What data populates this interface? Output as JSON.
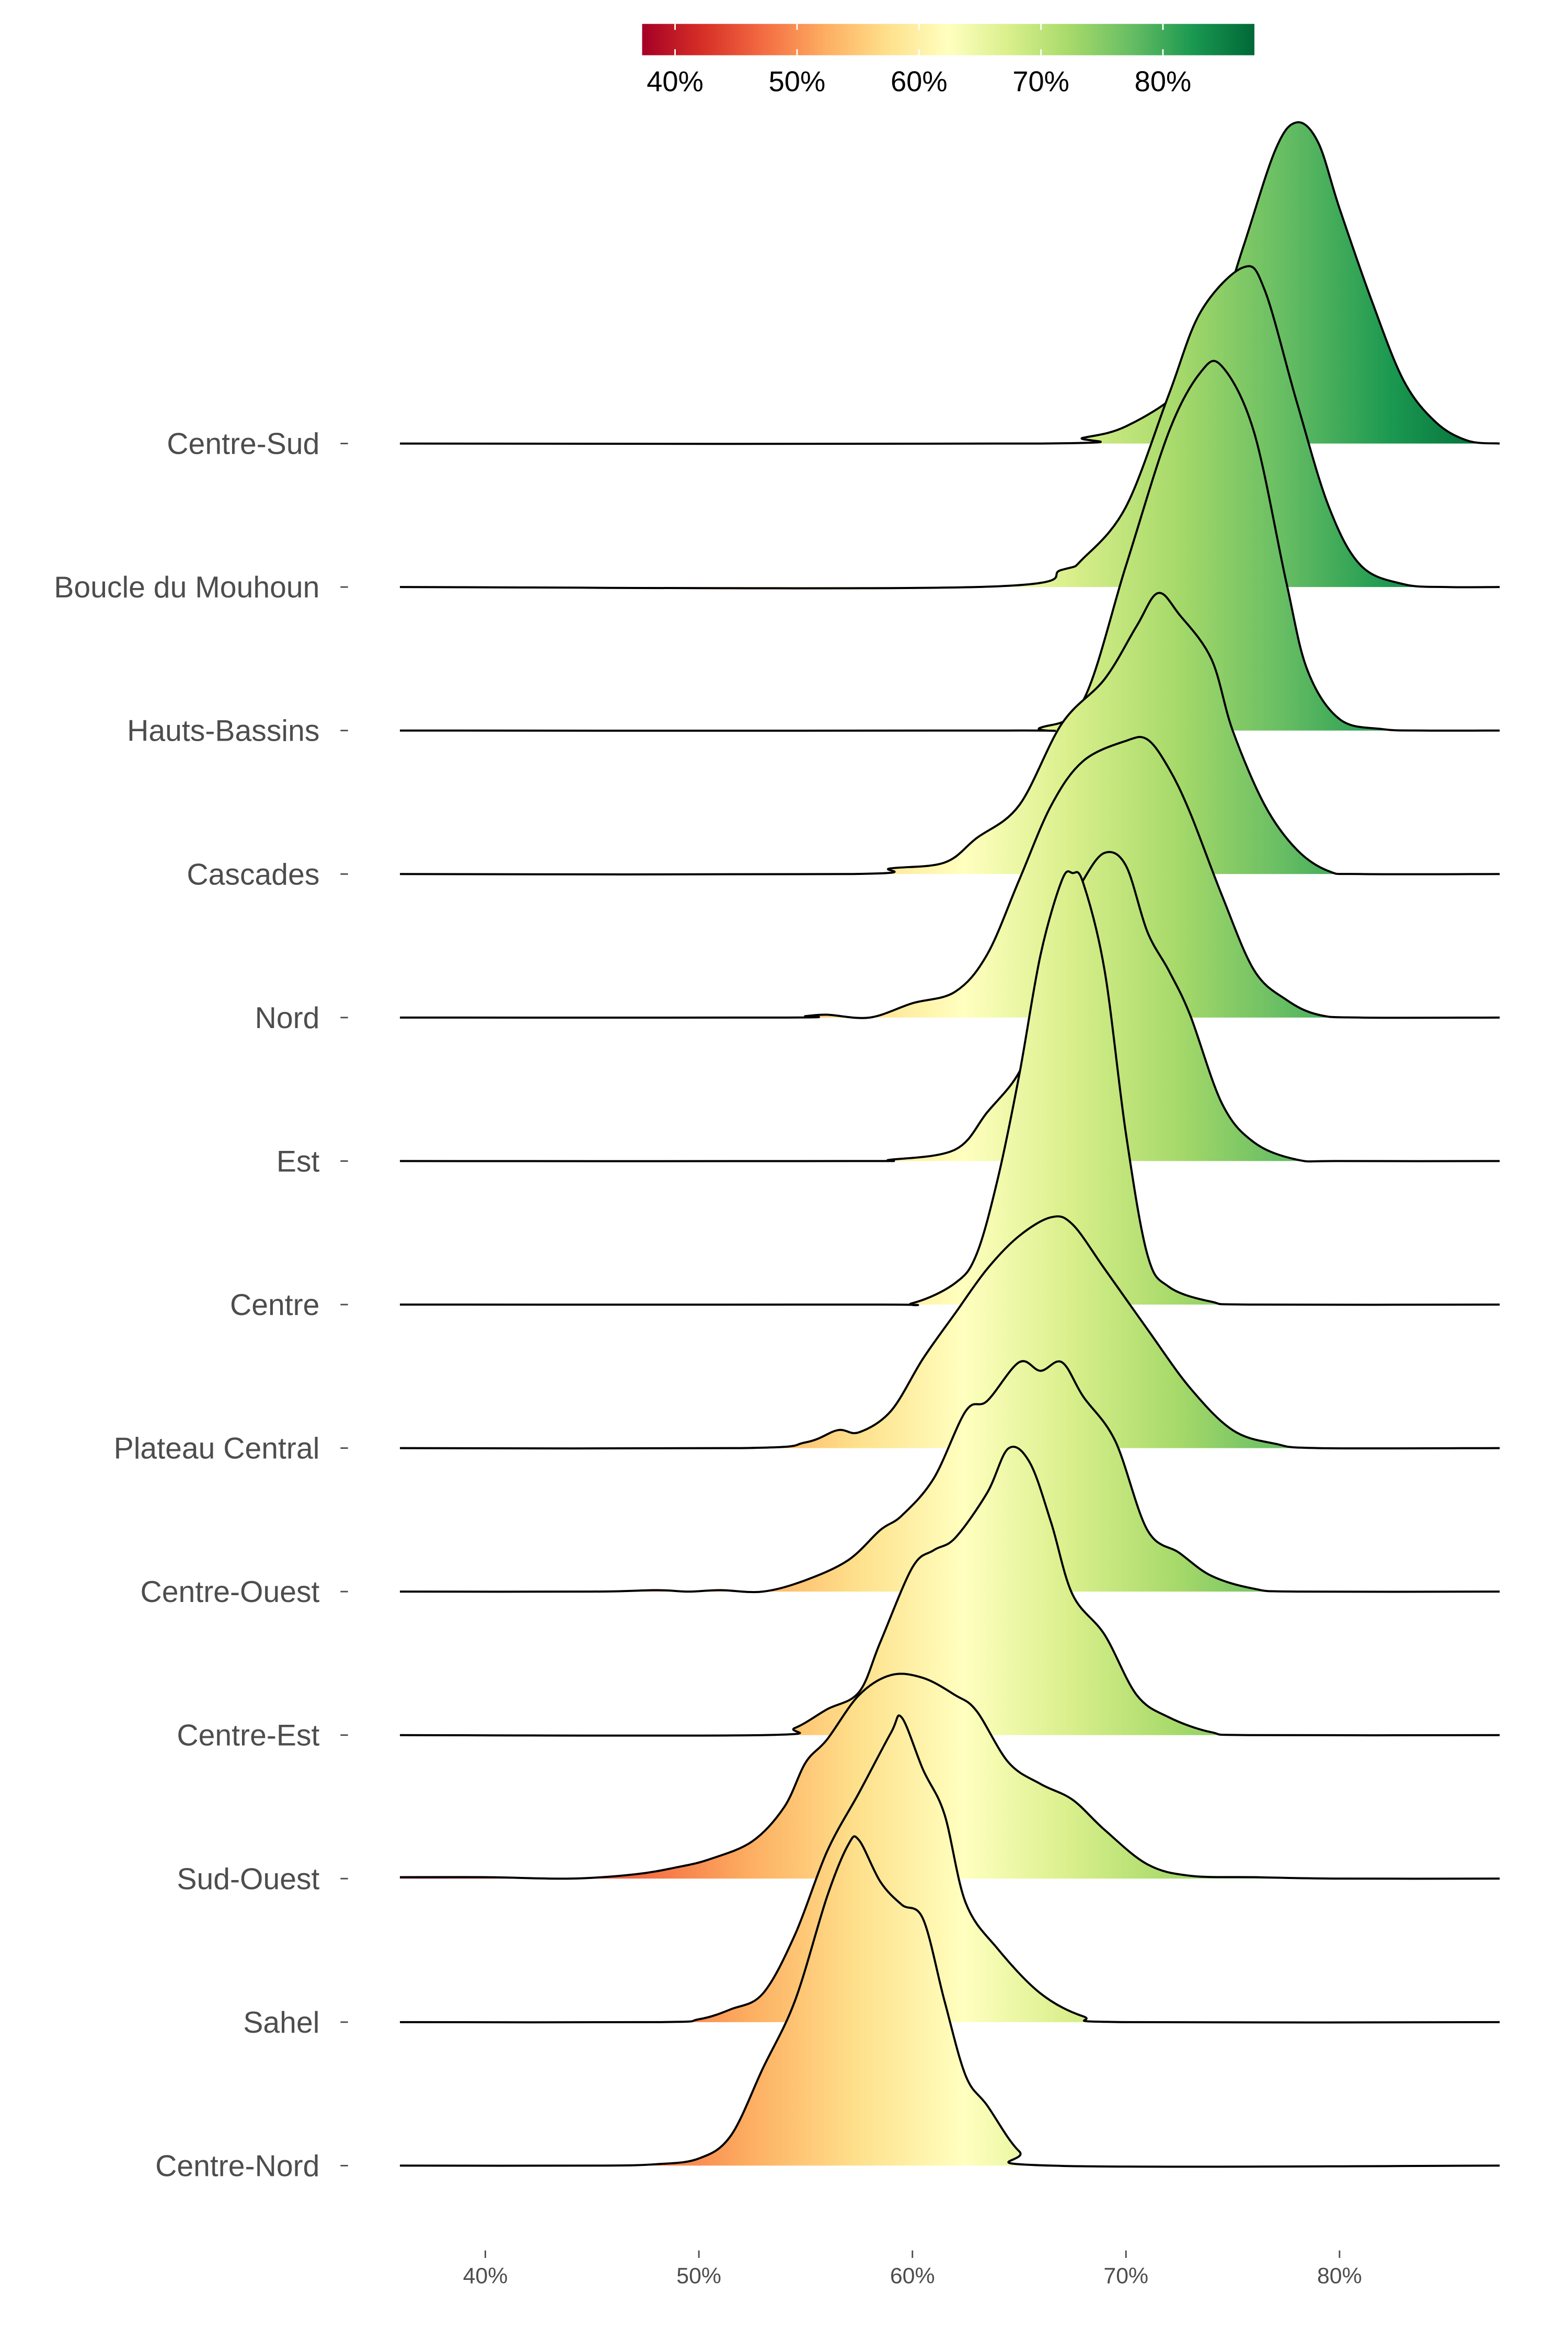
{
  "chart_data": {
    "type": "ridgeline-density",
    "title": "",
    "xlabel": "",
    "ylabel": "",
    "xlim": [
      36,
      87.5
    ],
    "x_ticks": [
      40,
      50,
      60,
      70,
      80
    ],
    "x_tick_labels": [
      "40%",
      "50%",
      "60%",
      "70%",
      "80%"
    ],
    "grid": false,
    "legend": {
      "type": "colorbar",
      "placement": "top",
      "range": [
        37.3,
        87.5
      ],
      "tick_values": [
        40,
        50,
        60,
        70,
        80
      ],
      "tick_labels": [
        "40%",
        "50%",
        "60%",
        "70%",
        "80%"
      ],
      "palette": [
        "#a50026",
        "#d73027",
        "#f46d43",
        "#fdae61",
        "#fee08b",
        "#ffffbf",
        "#d9ef8b",
        "#a6d96a",
        "#66bd63",
        "#1a9850",
        "#006837"
      ]
    },
    "height_unit": "row spacing",
    "series": [
      {
        "name": "Centre-Sud",
        "points": [
          [
            36,
            0
          ],
          [
            66,
            0
          ],
          [
            68,
            0.04
          ],
          [
            70,
            0.12
          ],
          [
            72.5,
            0.36
          ],
          [
            74,
            0.7
          ],
          [
            75.5,
            1.375
          ],
          [
            77,
            2.05
          ],
          [
            78,
            2.24
          ],
          [
            79,
            2.1
          ],
          [
            80,
            1.64
          ],
          [
            81.5,
            1.0
          ],
          [
            83,
            0.44
          ],
          [
            84.5,
            0.15
          ],
          [
            86,
            0.02
          ],
          [
            87.5,
            0
          ]
        ]
      },
      {
        "name": "Boucle du Mouhoun",
        "points": [
          [
            36,
            0
          ],
          [
            63,
            0
          ],
          [
            67,
            0.12
          ],
          [
            68,
            0.2
          ],
          [
            70,
            0.56
          ],
          [
            72,
            1.34
          ],
          [
            73.5,
            1.92
          ],
          [
            75.5,
            2.23
          ],
          [
            76.5,
            2.07
          ],
          [
            78,
            1.29
          ],
          [
            79.5,
            0.56
          ],
          [
            81,
            0.15
          ],
          [
            83,
            0.02
          ],
          [
            85,
            0
          ],
          [
            87.5,
            0
          ]
        ]
      },
      {
        "name": "Hauts-Bassins",
        "points": [
          [
            36,
            0
          ],
          [
            64,
            0
          ],
          [
            66,
            0.02
          ],
          [
            68,
            0.21
          ],
          [
            70,
            1.15
          ],
          [
            72,
            2.08
          ],
          [
            73.5,
            2.5
          ],
          [
            74.5,
            2.54
          ],
          [
            76,
            2.08
          ],
          [
            77.5,
            1.04
          ],
          [
            78.5,
            0.42
          ],
          [
            80,
            0.08
          ],
          [
            82,
            0.01
          ],
          [
            84,
            0
          ],
          [
            87.5,
            0
          ]
        ]
      },
      {
        "name": "Cascades",
        "points": [
          [
            36,
            0
          ],
          [
            57,
            0
          ],
          [
            59,
            0.04
          ],
          [
            61.5,
            0.08
          ],
          [
            63,
            0.25
          ],
          [
            65,
            0.48
          ],
          [
            67,
            1.05
          ],
          [
            69,
            1.36
          ],
          [
            70.5,
            1.73
          ],
          [
            71.5,
            1.96
          ],
          [
            72.5,
            1.81
          ],
          [
            74,
            1.5
          ],
          [
            75,
            1.0
          ],
          [
            76.5,
            0.48
          ],
          [
            78,
            0.17
          ],
          [
            79.5,
            0.02
          ],
          [
            81,
            0
          ],
          [
            87.5,
            0
          ]
        ]
      },
      {
        "name": "Nord",
        "points": [
          [
            36,
            0
          ],
          [
            54,
            0
          ],
          [
            55,
            0.01
          ],
          [
            56,
            0.02
          ],
          [
            58,
            0
          ],
          [
            60,
            0.1
          ],
          [
            62,
            0.18
          ],
          [
            63.5,
            0.44
          ],
          [
            65,
            0.96
          ],
          [
            66.5,
            1.48
          ],
          [
            68,
            1.79
          ],
          [
            70,
            1.93
          ],
          [
            71,
            1.94
          ],
          [
            72,
            1.74
          ],
          [
            73,
            1.43
          ],
          [
            74.5,
            0.85
          ],
          [
            76,
            0.33
          ],
          [
            77.5,
            0.125
          ],
          [
            79,
            0.02
          ],
          [
            81,
            0
          ],
          [
            87.5,
            0
          ]
        ]
      },
      {
        "name": "Est",
        "points": [
          [
            36,
            0
          ],
          [
            57,
            0
          ],
          [
            59,
            0.01
          ],
          [
            62,
            0.08
          ],
          [
            63.5,
            0.34
          ],
          [
            65,
            0.62
          ],
          [
            66,
            1.02
          ],
          [
            67,
            1.65
          ],
          [
            68,
            1.96
          ],
          [
            69,
            2.15
          ],
          [
            70,
            2.06
          ],
          [
            71,
            1.6
          ],
          [
            72,
            1.33
          ],
          [
            73,
            1.02
          ],
          [
            74.5,
            0.4
          ],
          [
            76,
            0.13
          ],
          [
            78,
            0.01
          ],
          [
            80,
            0
          ],
          [
            87.5,
            0
          ]
        ]
      },
      {
        "name": "Centre",
        "points": [
          [
            36,
            0
          ],
          [
            58,
            0
          ],
          [
            60,
            0.01
          ],
          [
            62,
            0.15
          ],
          [
            63,
            0.35
          ],
          [
            64,
            0.88
          ],
          [
            65,
            1.6
          ],
          [
            66,
            2.44
          ],
          [
            67,
            2.96
          ],
          [
            67.5,
            3.01
          ],
          [
            68,
            2.94
          ],
          [
            69,
            2.33
          ],
          [
            70,
            1.19
          ],
          [
            71,
            0.35
          ],
          [
            72,
            0.125
          ],
          [
            74,
            0.02
          ],
          [
            76,
            0
          ],
          [
            87.5,
            0
          ]
        ]
      },
      {
        "name": "Plateau Central",
        "points": [
          [
            36,
            0
          ],
          [
            52,
            0
          ],
          [
            55,
            0.04
          ],
          [
            56.5,
            0.125
          ],
          [
            57.5,
            0.11
          ],
          [
            59,
            0.26
          ],
          [
            60.5,
            0.625
          ],
          [
            62,
            0.94
          ],
          [
            63.5,
            1.25
          ],
          [
            65,
            1.48
          ],
          [
            66.5,
            1.61
          ],
          [
            67.5,
            1.56
          ],
          [
            69,
            1.25
          ],
          [
            71,
            0.83
          ],
          [
            73,
            0.42
          ],
          [
            75,
            0.125
          ],
          [
            77,
            0.03
          ],
          [
            79,
            0
          ],
          [
            87.5,
            0
          ]
        ]
      },
      {
        "name": "Centre-Ouest",
        "points": [
          [
            36,
            0
          ],
          [
            45,
            0
          ],
          [
            48,
            0.01
          ],
          [
            49.5,
            0.0
          ],
          [
            51,
            0.01
          ],
          [
            53,
            0
          ],
          [
            55,
            0.08
          ],
          [
            57,
            0.22
          ],
          [
            58.5,
            0.43
          ],
          [
            59.5,
            0.53
          ],
          [
            61,
            0.79
          ],
          [
            62.5,
            1.26
          ],
          [
            63.5,
            1.33
          ],
          [
            65,
            1.6
          ],
          [
            66,
            1.54
          ],
          [
            67,
            1.6
          ],
          [
            68,
            1.36
          ],
          [
            69.5,
            1.05
          ],
          [
            71,
            0.43
          ],
          [
            72.5,
            0.27
          ],
          [
            74,
            0.11
          ],
          [
            76,
            0.02
          ],
          [
            78,
            0
          ],
          [
            87.5,
            0
          ]
        ]
      },
      {
        "name": "Centre-Est",
        "points": [
          [
            36,
            0
          ],
          [
            53,
            0
          ],
          [
            54.5,
            0.05
          ],
          [
            56,
            0.18
          ],
          [
            57.5,
            0.3
          ],
          [
            58.5,
            0.65
          ],
          [
            60,
            1.17
          ],
          [
            61,
            1.29
          ],
          [
            62,
            1.375
          ],
          [
            63.5,
            1.69
          ],
          [
            64.5,
            2.0
          ],
          [
            65.5,
            1.9
          ],
          [
            66.5,
            1.48
          ],
          [
            67.5,
            0.98
          ],
          [
            69,
            0.7
          ],
          [
            70.5,
            0.28
          ],
          [
            72,
            0.125
          ],
          [
            74,
            0.02
          ],
          [
            76,
            0
          ],
          [
            87.5,
            0
          ]
        ]
      },
      {
        "name": "Sud-Ouest",
        "points": [
          [
            36,
            0.01
          ],
          [
            40,
            0.01
          ],
          [
            44,
            0
          ],
          [
            47,
            0.03
          ],
          [
            49,
            0.08
          ],
          [
            50.5,
            0.135
          ],
          [
            52.5,
            0.26
          ],
          [
            54,
            0.5
          ],
          [
            55,
            0.81
          ],
          [
            56,
            0.97
          ],
          [
            57.5,
            1.28
          ],
          [
            59,
            1.42
          ],
          [
            60.5,
            1.4
          ],
          [
            62,
            1.28
          ],
          [
            63,
            1.17
          ],
          [
            64.5,
            0.81
          ],
          [
            66,
            0.66
          ],
          [
            67.5,
            0.55
          ],
          [
            69,
            0.34
          ],
          [
            71,
            0.1
          ],
          [
            73,
            0.02
          ],
          [
            76,
            0.01
          ],
          [
            80,
            0
          ],
          [
            87.5,
            0
          ]
        ]
      },
      {
        "name": "Sahel",
        "points": [
          [
            36,
            0
          ],
          [
            48,
            0
          ],
          [
            50,
            0.02
          ],
          [
            51.5,
            0.09
          ],
          [
            53,
            0.2
          ],
          [
            54.5,
            0.61
          ],
          [
            56,
            1.19
          ],
          [
            57.5,
            1.6
          ],
          [
            59,
            2.02
          ],
          [
            59.5,
            2.125
          ],
          [
            60.5,
            1.76
          ],
          [
            61.5,
            1.45
          ],
          [
            62.5,
            0.83
          ],
          [
            64,
            0.51
          ],
          [
            66,
            0.2
          ],
          [
            68,
            0.04
          ],
          [
            70,
            0
          ],
          [
            87.5,
            0
          ]
        ]
      },
      {
        "name": "Centre-Nord",
        "points": [
          [
            36,
            0
          ],
          [
            45,
            0
          ],
          [
            48,
            0.01
          ],
          [
            50,
            0.05
          ],
          [
            51.5,
            0.21
          ],
          [
            53,
            0.68
          ],
          [
            54.5,
            1.15
          ],
          [
            56,
            1.875
          ],
          [
            57,
            2.24
          ],
          [
            57.5,
            2.27
          ],
          [
            58.5,
            1.98
          ],
          [
            59.5,
            1.82
          ],
          [
            60.5,
            1.72
          ],
          [
            61.5,
            1.15
          ],
          [
            62.5,
            0.625
          ],
          [
            63.5,
            0.42
          ],
          [
            65,
            0.1
          ],
          [
            66.5,
            0
          ],
          [
            87.5,
            0
          ]
        ]
      }
    ]
  }
}
